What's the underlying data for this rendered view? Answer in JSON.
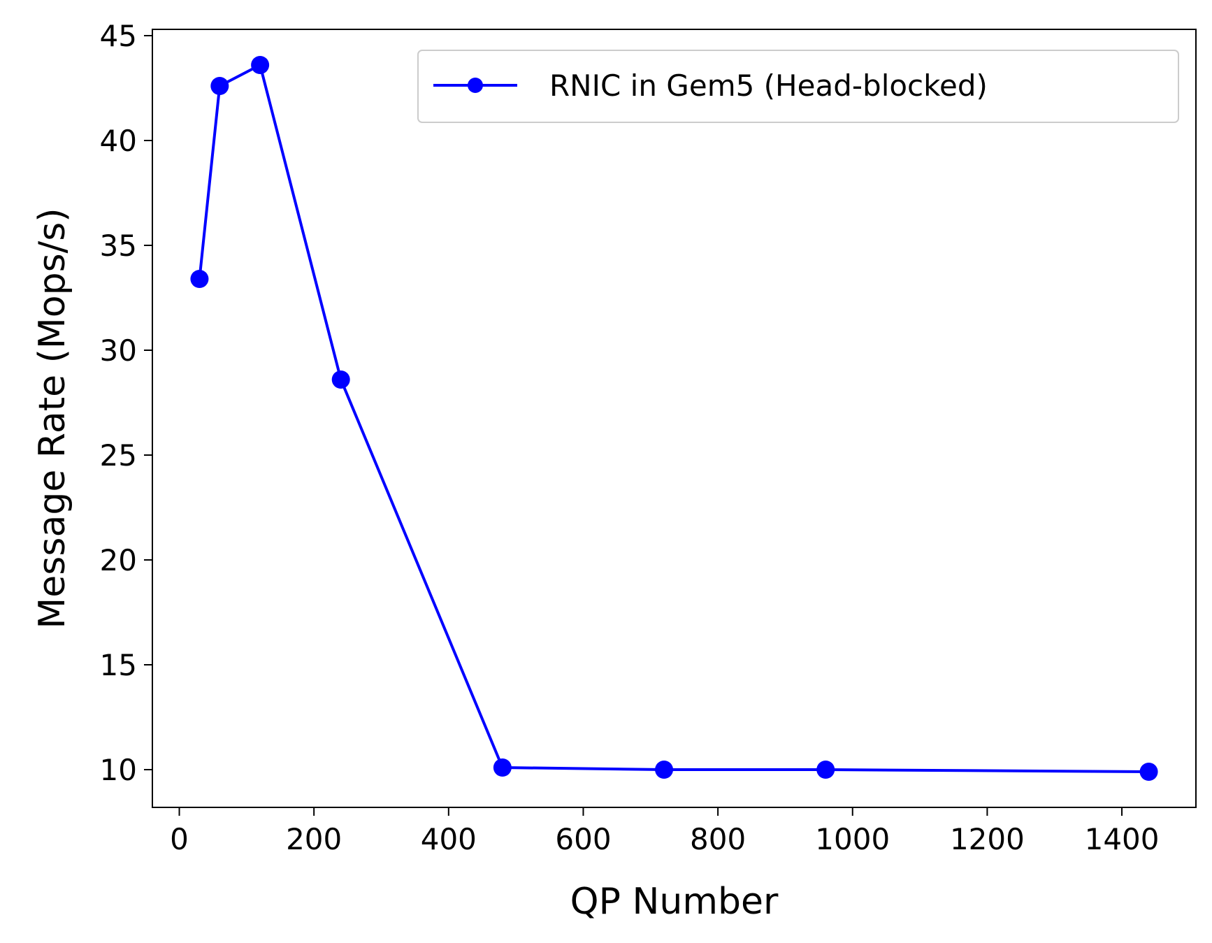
{
  "chart_data": {
    "type": "line",
    "xlabel": "QP Number",
    "ylabel": "Message Rate (Mops/s)",
    "xlim": [
      -40,
      1510
    ],
    "ylim": [
      8.2,
      45.3
    ],
    "xticks": [
      0,
      200,
      400,
      600,
      800,
      1000,
      1200,
      1400
    ],
    "yticks": [
      10,
      15,
      20,
      25,
      30,
      35,
      40,
      45
    ],
    "grid": false,
    "legend_position": "top-right",
    "series": [
      {
        "name": "RNIC in Gem5 (Head-blocked)",
        "color": "#0000ff",
        "marker": "circle",
        "x": [
          30,
          60,
          120,
          240,
          480,
          720,
          960,
          1440
        ],
        "y": [
          33.4,
          42.6,
          43.6,
          28.6,
          10.1,
          10.0,
          10.0,
          9.9
        ]
      }
    ]
  }
}
